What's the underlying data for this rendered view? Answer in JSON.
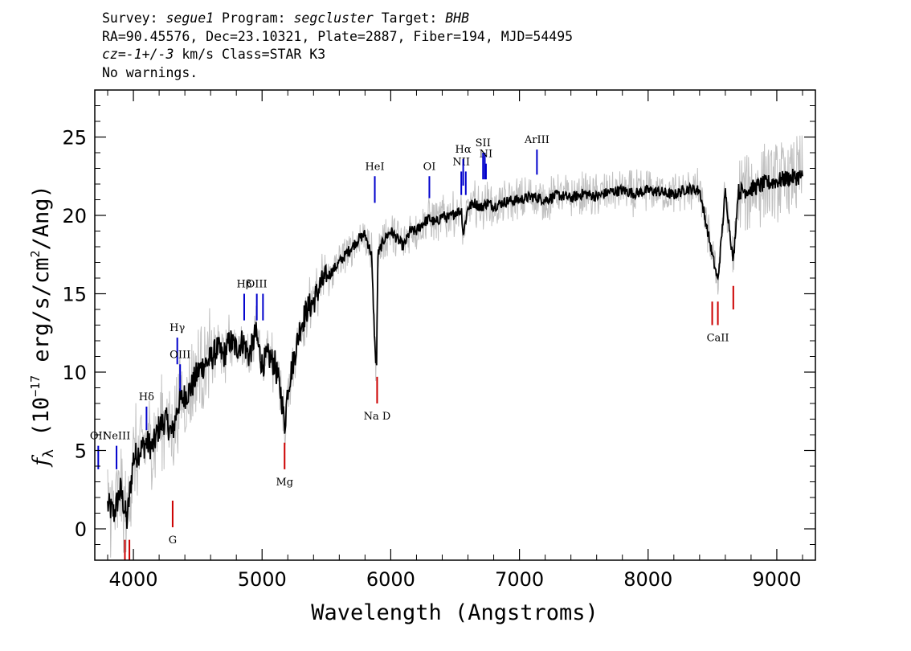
{
  "header": {
    "survey_label": "Survey:",
    "survey": "segue1",
    "program_label": "Program:",
    "program": "segcluster",
    "target_label": "Target:",
    "target": "BHB",
    "line2": "RA=90.45576, Dec=23.10321, Plate=2887, Fiber=194, MJD=54495",
    "cz": "cz=-1+/-3",
    "cz_rest": " km/s Class=STAR K3",
    "line4": "No warnings."
  },
  "chart_data": {
    "type": "line",
    "xlabel": "Wavelength (Angstroms)",
    "ylabel": "f_λ (10^-17 erg/s/cm^2/Ang)",
    "ylabel_parts": {
      "f": "f",
      "sub": "λ",
      "pre": " (10",
      "exp": "−17",
      "mid": " erg/s/cm",
      "exp2": "2",
      "post": "/Ang)"
    },
    "xlim": [
      3700,
      9300
    ],
    "ylim": [
      -2,
      28
    ],
    "xticks": [
      4000,
      5000,
      6000,
      7000,
      8000,
      9000
    ],
    "xtick_labels": [
      "4000",
      "5000",
      "6000",
      "7000",
      "8000",
      "9000"
    ],
    "yticks": [
      0,
      5,
      10,
      15,
      20,
      25
    ],
    "ytick_labels": [
      "0",
      "5",
      "10",
      "15",
      "20",
      "25"
    ],
    "colors": {
      "flux": "#000000",
      "error_band": "#c0c0c0",
      "emission": "#0000cc",
      "absorption": "#cc0000"
    },
    "series": [
      {
        "role": "flux",
        "x": [
          3800,
          3850,
          3900,
          3950,
          4000,
          4050,
          4100,
          4150,
          4200,
          4250,
          4300,
          4350,
          4400,
          4450,
          4500,
          4550,
          4600,
          4650,
          4700,
          4750,
          4800,
          4850,
          4900,
          4950,
          5000,
          5050,
          5100,
          5150,
          5175,
          5200,
          5250,
          5300,
          5350,
          5400,
          5450,
          5500,
          5550,
          5600,
          5650,
          5700,
          5750,
          5800,
          5850,
          5880,
          5890,
          5900,
          5950,
          6000,
          6050,
          6100,
          6150,
          6200,
          6250,
          6300,
          6350,
          6400,
          6450,
          6500,
          6550,
          6563,
          6600,
          6650,
          6700,
          6750,
          6800,
          6900,
          7000,
          7100,
          7200,
          7300,
          7400,
          7500,
          7600,
          7700,
          7800,
          7900,
          8000,
          8100,
          8200,
          8300,
          8400,
          8498,
          8542,
          8600,
          8662,
          8700,
          8800,
          8900,
          9000,
          9100,
          9200
        ],
        "y": [
          1.5,
          1.0,
          2.5,
          0.5,
          4.5,
          5.0,
          5.5,
          5.2,
          6.5,
          7.0,
          6.0,
          8.0,
          8.5,
          9.0,
          10.0,
          10.5,
          10.8,
          11.5,
          11.0,
          12.0,
          11.5,
          12.0,
          11.0,
          12.5,
          10.5,
          11.0,
          10.5,
          8.5,
          6.5,
          9.0,
          11.0,
          13.0,
          14.0,
          14.5,
          15.5,
          16.0,
          16.5,
          17.0,
          17.5,
          18.0,
          18.5,
          18.8,
          17.5,
          11.0,
          10.5,
          17.5,
          18.5,
          19.0,
          18.5,
          18.0,
          19.0,
          19.0,
          19.5,
          19.8,
          19.5,
          20.0,
          19.8,
          20.2,
          20.3,
          18.8,
          20.5,
          20.8,
          20.5,
          20.8,
          20.6,
          20.9,
          21.0,
          21.2,
          21.0,
          21.3,
          21.1,
          21.4,
          21.2,
          21.5,
          21.6,
          21.4,
          21.6,
          21.5,
          21.3,
          21.7,
          21.6,
          17.5,
          15.8,
          21.5,
          17.0,
          21.5,
          21.7,
          22.0,
          22.2,
          22.4,
          22.5
        ]
      }
    ],
    "line_markers": [
      {
        "label": "OII",
        "x": 3727,
        "y_bottom": 3.8,
        "y_top": 5.3,
        "kind": "emission"
      },
      {
        "label": "NeIII",
        "x": 3869,
        "y_bottom": 3.8,
        "y_top": 5.3,
        "kind": "emission"
      },
      {
        "label": "Hδ",
        "x": 4102,
        "y_bottom": 6.3,
        "y_top": 7.8,
        "kind": "emission"
      },
      {
        "label": "Hγ",
        "x": 4341,
        "y_bottom": 10.5,
        "y_top": 12.2,
        "kind": "emission"
      },
      {
        "label": "OIII",
        "x": 4363,
        "y_bottom": 8.8,
        "y_top": 10.5,
        "kind": "emission"
      },
      {
        "label": "Hβ",
        "x": 4861,
        "y_bottom": 13.3,
        "y_top": 15.0,
        "kind": "emission"
      },
      {
        "label": "OIII",
        "x": 4959,
        "y_bottom": 13.3,
        "y_top": 15.0,
        "kind": "emission"
      },
      {
        "label": "",
        "x": 5007,
        "y_bottom": 13.3,
        "y_top": 15.0,
        "kind": "emission"
      },
      {
        "label": "HeI",
        "x": 5876,
        "y_bottom": 20.8,
        "y_top": 22.5,
        "kind": "emission"
      },
      {
        "label": "OI",
        "x": 6300,
        "y_bottom": 21.1,
        "y_top": 22.5,
        "kind": "emission"
      },
      {
        "label": "NII",
        "x": 6548,
        "y_bottom": 21.3,
        "y_top": 22.8,
        "kind": "emission"
      },
      {
        "label": "Hα",
        "x": 6563,
        "y_bottom": 21.9,
        "y_top": 23.6,
        "kind": "emission"
      },
      {
        "label": "",
        "x": 6583,
        "y_bottom": 21.3,
        "y_top": 22.8,
        "kind": "emission"
      },
      {
        "label": "SII",
        "x": 6717,
        "y_bottom": 22.3,
        "y_top": 24.0,
        "kind": "emission"
      },
      {
        "label": "",
        "x": 6731,
        "y_bottom": 22.3,
        "y_top": 24.0,
        "kind": "emission"
      },
      {
        "label": "NI",
        "x": 6740,
        "y_bottom": 22.3,
        "y_top": 23.3,
        "kind": "emission"
      },
      {
        "label": "ArIII",
        "x": 7136,
        "y_bottom": 22.6,
        "y_top": 24.2,
        "kind": "emission"
      },
      {
        "label": "",
        "x": 3934,
        "y_bottom": -2.0,
        "y_top": -0.7,
        "kind": "absorption"
      },
      {
        "label": "",
        "x": 3969,
        "y_bottom": -2.0,
        "y_top": -0.7,
        "kind": "absorption"
      },
      {
        "label": "G",
        "x": 4305,
        "y_bottom": 0.1,
        "y_top": 1.8,
        "kind": "absorption"
      },
      {
        "label": "Mg",
        "x": 5175,
        "y_bottom": 3.8,
        "y_top": 5.5,
        "kind": "absorption"
      },
      {
        "label": "Na D",
        "x": 5894,
        "y_bottom": 8.0,
        "y_top": 9.7,
        "kind": "absorption"
      },
      {
        "label": "",
        "x": 8498,
        "y_bottom": 13.0,
        "y_top": 14.5,
        "kind": "absorption"
      },
      {
        "label": "CaII",
        "x": 8542,
        "y_bottom": 13.0,
        "y_top": 14.5,
        "kind": "absorption"
      },
      {
        "label": "",
        "x": 8662,
        "y_bottom": 14.0,
        "y_top": 15.5,
        "kind": "absorption"
      }
    ]
  }
}
